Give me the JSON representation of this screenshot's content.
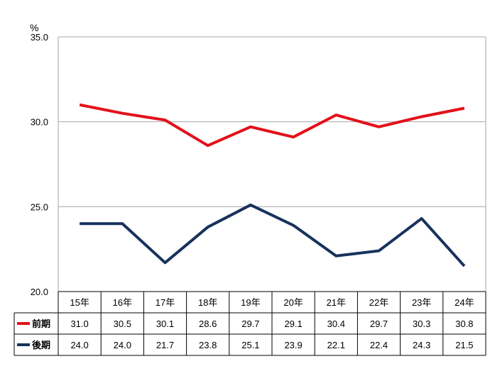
{
  "chart_data": {
    "type": "line",
    "unit": "%",
    "ylim": [
      20.0,
      35.0
    ],
    "yticks": [
      "35.0",
      "30.0",
      "25.0",
      "20.0"
    ],
    "ytick_values": [
      35,
      30,
      25,
      20
    ],
    "grid": true,
    "legend": "bottom data table",
    "categories": [
      "15年",
      "16年",
      "17年",
      "18年",
      "19年",
      "20年",
      "21年",
      "22年",
      "23年",
      "24年"
    ],
    "series": [
      {
        "name": "前期",
        "color": "#e3101a",
        "values": [
          31.0,
          30.5,
          30.1,
          28.6,
          29.7,
          29.1,
          30.4,
          29.7,
          30.3,
          30.8
        ],
        "labels": [
          "31.0",
          "30.5",
          "30.1",
          "28.6",
          "29.7",
          "29.1",
          "30.4",
          "29.7",
          "30.3",
          "30.8"
        ]
      },
      {
        "name": "後期",
        "color": "#17325c",
        "values": [
          24.0,
          24.0,
          21.7,
          23.8,
          25.1,
          23.9,
          22.1,
          22.4,
          24.3,
          21.5
        ],
        "labels": [
          "24.0",
          "24.0",
          "21.7",
          "23.8",
          "25.1",
          "23.9",
          "22.1",
          "22.4",
          "24.3",
          "21.5"
        ]
      }
    ]
  }
}
